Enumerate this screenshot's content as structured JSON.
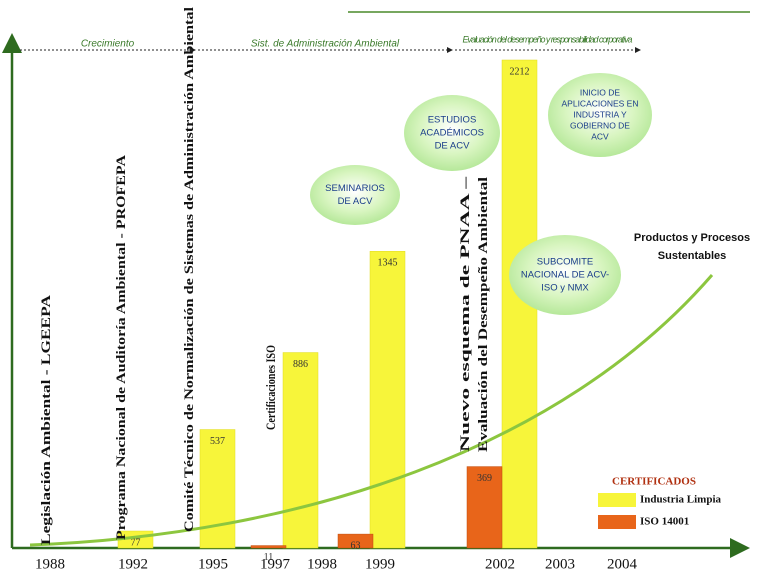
{
  "chart_data": {
    "type": "bar",
    "categories": [
      "1988",
      "1992",
      "1995",
      "1997",
      "1998",
      "1999",
      "2002",
      "2003",
      "2004"
    ],
    "series": [
      {
        "name": "Industria Limpia",
        "color": "#f7f53a",
        "values": [
          null,
          77,
          537,
          886,
          null,
          1345,
          2212,
          null,
          null
        ]
      },
      {
        "name": "ISO 14001",
        "color": "#e8651a",
        "values": [
          null,
          null,
          null,
          11,
          63,
          null,
          369,
          null,
          null
        ]
      }
    ],
    "legend_title": "CERTIFICADOS",
    "phases": [
      "Crecimiento",
      "Sist. de Administración Ambiental",
      "Evaluación del desempeño y responsabilidad corporativa"
    ],
    "milestones": [
      [
        "Legislación Ambiental - LGEEPA"
      ],
      [
        "Programa Nacional de Auditoría Ambiental - PROFEPA"
      ],
      [
        "Comité Técnico de Normalización de Sistemas de Administración Ambiental"
      ],
      [
        "Certificaciones ISO"
      ],
      [
        "Nuevo esquema de PNAA –",
        "Evaluación del Desempeño Ambiental"
      ]
    ],
    "bubbles": [
      [
        "SEMINARIOS",
        "DE ACV"
      ],
      [
        "ESTUDIOS",
        "ACADÉMICOS",
        "DE ACV"
      ],
      [
        "INICIO DE",
        "APLICACIONES EN",
        "INDUSTRIA Y",
        "GOBIERNO DE",
        "ACV"
      ],
      [
        "SUBCOMITE",
        "NACIONAL DE ACV-",
        "ISO y NMX"
      ]
    ],
    "curve_label": [
      "Productos y Procesos",
      "Sustentables"
    ]
  }
}
